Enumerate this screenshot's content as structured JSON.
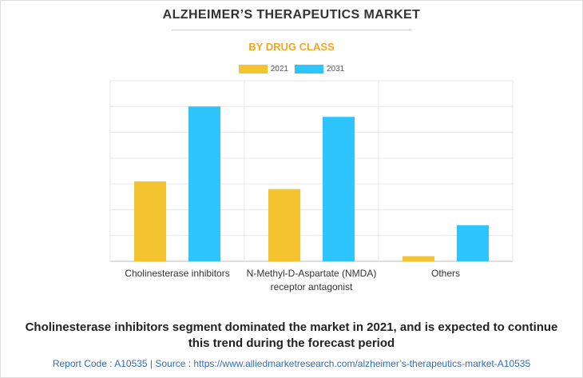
{
  "header": {
    "title": "ALZHEIMER’S THERAPEUTICS MARKET",
    "subtitle": "BY DRUG CLASS"
  },
  "colors": {
    "accent": "#f5a623",
    "series_2021": "#f4c430",
    "series_2031": "#2ec4ff",
    "grid": "#e6e6e6"
  },
  "chart_data": {
    "type": "bar",
    "title": "BY DRUG CLASS",
    "categories": [
      [
        "Cholinesterase inhibitors"
      ],
      [
        "N-Methyl-D-Aspartate (NMDA)",
        "receptor antagonist"
      ],
      [
        "Others"
      ]
    ],
    "series": [
      {
        "name": "2021",
        "values": [
          3.1,
          2.8,
          0.2
        ]
      },
      {
        "name": "2031",
        "values": [
          6.0,
          5.6,
          1.4
        ]
      }
    ],
    "xlabel": "",
    "ylabel": "",
    "ylim": [
      0,
      7
    ],
    "grid": true,
    "legend": "top-center",
    "tick_labels_visible": false
  },
  "caption": "Cholinesterase inhibitors segment dominated the market in 2021, and is expected to continue this trend during the forecast period",
  "footer": "Report Code : A10535  |  Source : https://www.alliedmarketresearch.com/alzheimer’s-therapeutics-market-A10535"
}
